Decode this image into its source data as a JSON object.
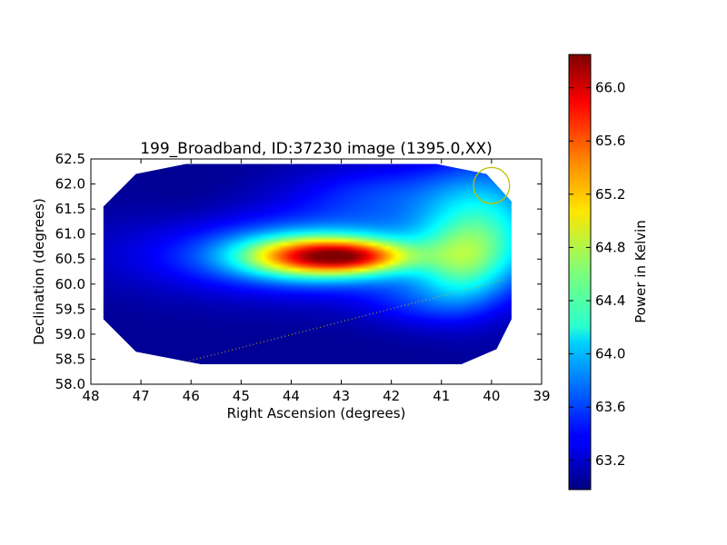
{
  "chart_data": {
    "type": "heatmap",
    "title": "199_Broadband, ID:37230 image (1395.0,XX)",
    "xlabel": "Right Ascension (degrees)",
    "ylabel": "Declination (degrees)",
    "xlim": [
      48,
      39
    ],
    "ylim": [
      58.0,
      62.5
    ],
    "x_ticks": [
      48,
      47,
      46,
      45,
      44,
      43,
      42,
      41,
      40,
      39
    ],
    "x_tick_labels": [
      "48",
      "47",
      "46",
      "45",
      "44",
      "43",
      "42",
      "41",
      "40",
      "39"
    ],
    "y_ticks": [
      58.0,
      58.5,
      59.0,
      59.5,
      60.0,
      60.5,
      61.0,
      61.5,
      62.0,
      62.5
    ],
    "y_tick_labels": [
      "58.0",
      "58.5",
      "59.0",
      "59.5",
      "60.0",
      "60.5",
      "61.0",
      "61.5",
      "62.0",
      "62.5"
    ],
    "colormap": "jet",
    "colorbar": {
      "label": "Power in Kelvin",
      "range": [
        62.98,
        66.25
      ],
      "ticks": [
        63.2,
        63.6,
        64.0,
        64.4,
        64.8,
        65.2,
        65.6,
        66.0
      ],
      "tick_labels": [
        "63.2",
        "63.6",
        "64.0",
        "64.4",
        "64.8",
        "65.2",
        "65.6",
        "66.0"
      ]
    },
    "field_footprint": [
      [
        47.75,
        61.55
      ],
      [
        47.1,
        62.2
      ],
      [
        46.1,
        62.4
      ],
      [
        41.1,
        62.4
      ],
      [
        40.1,
        62.2
      ],
      [
        39.6,
        61.65
      ],
      [
        39.6,
        59.3
      ],
      [
        39.9,
        58.7
      ],
      [
        40.6,
        58.4
      ],
      [
        45.8,
        58.4
      ],
      [
        47.1,
        58.65
      ],
      [
        47.75,
        59.3
      ]
    ],
    "background_level": 63.05,
    "components": [
      {
        "ra": 42.6,
        "dec": 60.55,
        "sigma_ra": 0.75,
        "sigma_dec": 0.22,
        "amplitude": 1.0
      },
      {
        "ra": 43.6,
        "dec": 60.55,
        "sigma_ra": 1.0,
        "sigma_dec": 0.28,
        "amplitude": 1.85
      },
      {
        "ra": 43.3,
        "dec": 60.6,
        "sigma_ra": 2.4,
        "sigma_dec": 0.55,
        "amplitude": 0.9
      },
      {
        "ra": 40.1,
        "dec": 61.2,
        "sigma_ra": 0.9,
        "sigma_dec": 0.9,
        "amplitude": 1.0
      },
      {
        "ra": 40.6,
        "dec": 60.3,
        "sigma_ra": 0.6,
        "sigma_dec": 0.6,
        "amplitude": 0.6
      },
      {
        "ra": 42.2,
        "dec": 61.8,
        "sigma_ra": 1.3,
        "sigma_dec": 0.45,
        "amplitude": 0.45
      },
      {
        "ra": 41.5,
        "dec": 59.6,
        "sigma_ra": 0.8,
        "sigma_dec": 0.35,
        "amplitude": 0.3
      },
      {
        "ra": 46.0,
        "dec": 61.5,
        "sigma_ra": 0.7,
        "sigma_dec": 0.5,
        "amplitude": -0.05
      }
    ],
    "overlays": {
      "circle": {
        "ra": 40.0,
        "dec": 61.97,
        "radius_deg": 0.36,
        "color": "#bfbf00"
      },
      "dotted_line": {
        "from": [
          46.1,
          58.45
        ],
        "to": [
          39.7,
          60.1
        ],
        "color": "#bfbf00"
      }
    }
  }
}
